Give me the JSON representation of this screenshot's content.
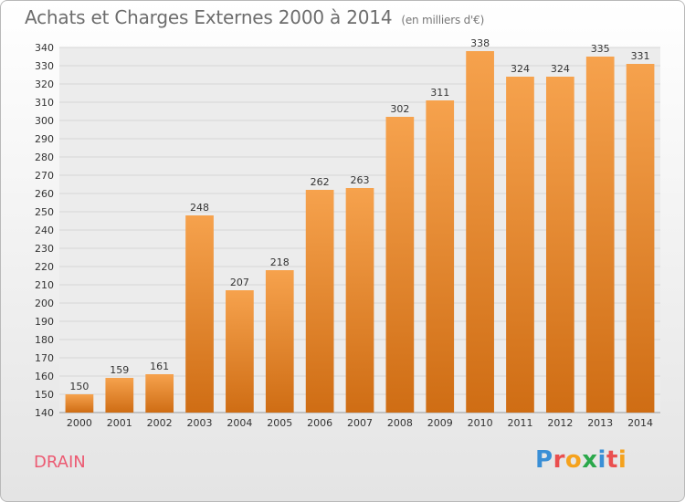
{
  "title": "Achats et Charges Externes 2000 à 2014",
  "subtitle": "(en milliers d'€)",
  "commune": "DRAIN",
  "brand": {
    "letters": [
      "P",
      "r",
      "o",
      "x",
      "i",
      "t",
      "i"
    ],
    "colors": [
      "#3a8fd6",
      "#ea4f4f",
      "#f5a21d",
      "#2aa84a",
      "#3a8fd6",
      "#ea4f4f",
      "#f5a21d"
    ]
  },
  "colors": {
    "bar_top": "#f6a24d",
    "bar_bottom": "#cf6d14",
    "grid": "#d6d6d6",
    "plot_bg": "#ececec"
  },
  "chart_data": {
    "type": "bar",
    "categories": [
      "2000",
      "2001",
      "2002",
      "2003",
      "2004",
      "2005",
      "2006",
      "2007",
      "2008",
      "2009",
      "2010",
      "2011",
      "2012",
      "2013",
      "2014"
    ],
    "values": [
      150,
      159,
      161,
      248,
      207,
      218,
      262,
      263,
      302,
      311,
      338,
      324,
      324,
      335,
      331
    ],
    "yticks": [
      140,
      150,
      160,
      170,
      180,
      190,
      200,
      210,
      220,
      230,
      240,
      250,
      260,
      270,
      280,
      290,
      300,
      310,
      320,
      330,
      340
    ],
    "ylim": [
      140,
      340
    ],
    "grid": true
  }
}
